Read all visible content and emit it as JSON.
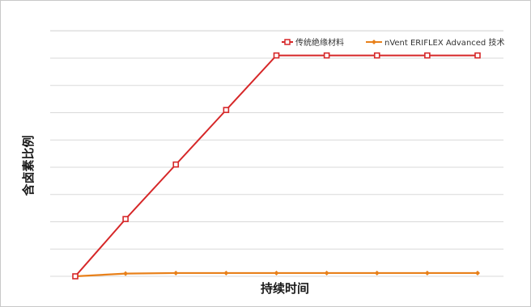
{
  "chart_data": {
    "type": "line",
    "title": "",
    "xlabel": "持续时间",
    "ylabel": "含卤素比例",
    "x": [
      1,
      2,
      3,
      4,
      5,
      6,
      7,
      8,
      9
    ],
    "ylim": [
      0,
      8
    ],
    "grid": true,
    "legend_position": "top-right",
    "series": [
      {
        "name": "传统绝缘材料",
        "color": "#d62728",
        "marker": "square",
        "values": [
          0,
          2.1,
          4.1,
          6.1,
          8.1,
          8.1,
          8.1,
          8.1,
          8.1
        ]
      },
      {
        "name": "nVent ERIFLEX Advanced 技术",
        "color": "#e8801a",
        "marker": "diamond",
        "values": [
          0,
          0.1,
          0.12,
          0.12,
          0.12,
          0.12,
          0.12,
          0.12,
          0.12
        ]
      }
    ]
  }
}
